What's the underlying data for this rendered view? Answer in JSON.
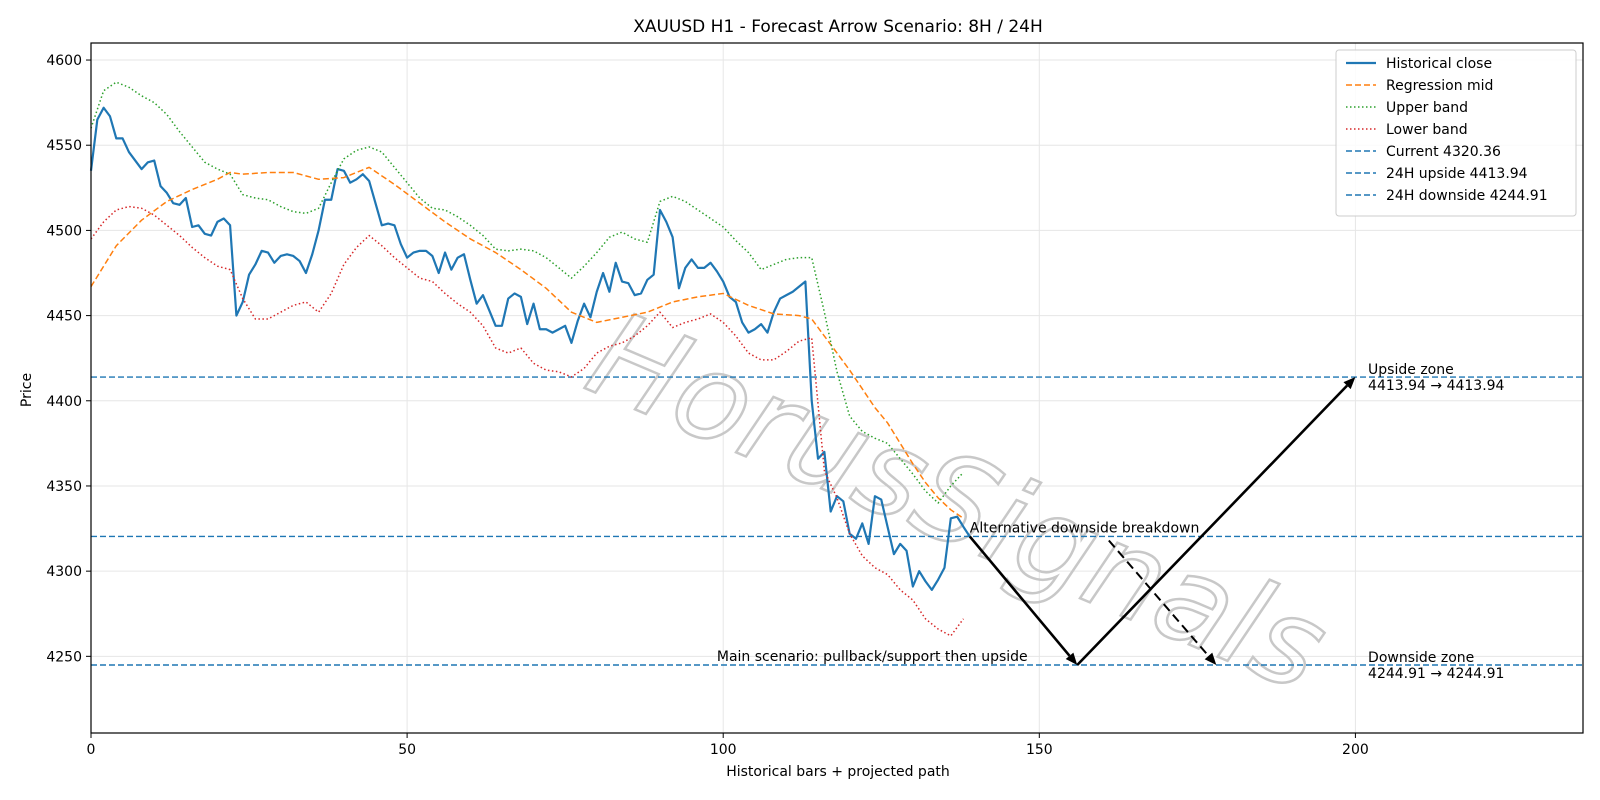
{
  "chart_data": {
    "type": "line",
    "title": "XAUUSD H1 - Forecast Arrow Scenario: 8H / 24H",
    "xlabel": "Historical bars + projected path",
    "ylabel": "Price",
    "xlim": [
      0,
      236
    ],
    "ylim": [
      4205,
      4610
    ],
    "xticks": [
      0,
      50,
      100,
      150,
      200
    ],
    "yticks": [
      4250,
      4300,
      4350,
      4400,
      4450,
      4500,
      4550,
      4600
    ],
    "grid": true,
    "legend_position": "top-right",
    "watermark": "HorusSignals",
    "colors": {
      "historical": "#1f77b4",
      "regression": "#ff7f0e",
      "upper": "#2ca02c",
      "lower": "#d62728",
      "levels": "#1f77b4",
      "arrows": "#000000"
    },
    "series": [
      {
        "name": "Historical close",
        "style": "solid",
        "color": "#1f77b4",
        "x": [
          0,
          1,
          2,
          3,
          4,
          5,
          6,
          7,
          8,
          9,
          10,
          11,
          12,
          13,
          14,
          15,
          16,
          17,
          18,
          19,
          20,
          21,
          22,
          23,
          24,
          25,
          26,
          27,
          28,
          29,
          30,
          31,
          32,
          33,
          34,
          35,
          36,
          37,
          38,
          39,
          40,
          41,
          42,
          43,
          44,
          45,
          46,
          47,
          48,
          49,
          50,
          51,
          52,
          53,
          54,
          55,
          56,
          57,
          58,
          59,
          60,
          61,
          62,
          63,
          64,
          65,
          66,
          67,
          68,
          69,
          70,
          71,
          72,
          73,
          74,
          75,
          76,
          77,
          78,
          79,
          80,
          81,
          82,
          83,
          84,
          85,
          86,
          87,
          88,
          89,
          90,
          91,
          92,
          93,
          94,
          95,
          96,
          97,
          98,
          99,
          100,
          101,
          102,
          103,
          104,
          105,
          106,
          107,
          108,
          109,
          110,
          111,
          112,
          113,
          114,
          115,
          116,
          117,
          118,
          119,
          120,
          121,
          122,
          123,
          124,
          125,
          126,
          127,
          128,
          129,
          130,
          131,
          132,
          133,
          134,
          135,
          136,
          137,
          138,
          139
        ],
        "values": [
          4535,
          4565,
          4572,
          4567,
          4554,
          4554,
          4546,
          4541,
          4536,
          4540,
          4541,
          4526,
          4522,
          4516,
          4515,
          4519,
          4502,
          4503,
          4498,
          4497,
          4505,
          4507,
          4503,
          4450,
          4458,
          4474,
          4480,
          4488,
          4487,
          4481,
          4485,
          4486,
          4485,
          4482,
          4475,
          4486,
          4500,
          4518,
          4518,
          4536,
          4535,
          4528,
          4530,
          4533,
          4529,
          4516,
          4503,
          4504,
          4503,
          4492,
          4484,
          4487,
          4488,
          4488,
          4485,
          4475,
          4487,
          4477,
          4484,
          4486,
          4471,
          4457,
          4462,
          4453,
          4444,
          4444,
          4460,
          4463,
          4461,
          4445,
          4457,
          4442,
          4442,
          4440,
          4442,
          4444,
          4434,
          4447,
          4457,
          4449,
          4464,
          4475,
          4464,
          4481,
          4470,
          4469,
          4462,
          4463,
          4471,
          4474,
          4512,
          4505,
          4496,
          4466,
          4478,
          4483,
          4478,
          4478,
          4481,
          4476,
          4470,
          4461,
          4458,
          4446,
          4440,
          4442,
          4445,
          4440,
          4452,
          4460,
          4462,
          4464,
          4467,
          4470,
          4400,
          4366,
          4370,
          4335,
          4344,
          4341,
          4322,
          4319,
          4328,
          4316,
          4344,
          4342,
          4326,
          4310,
          4316,
          4312,
          4291,
          4300,
          4294,
          4289,
          4295,
          4302,
          4331,
          4332,
          4326,
          4320.36
        ]
      },
      {
        "name": "Regression mid",
        "style": "dashed",
        "color": "#ff7f0e",
        "x": [
          0,
          4,
          8,
          12,
          16,
          20,
          22,
          24,
          28,
          32,
          36,
          40,
          44,
          48,
          52,
          56,
          60,
          64,
          68,
          72,
          76,
          80,
          84,
          88,
          92,
          96,
          100,
          104,
          108,
          112,
          114,
          116,
          118,
          120,
          122,
          124,
          126,
          128,
          130,
          132,
          134,
          136,
          138
        ],
        "values": [
          4467,
          4491,
          4506,
          4517,
          4524,
          4530,
          4534,
          4533,
          4534,
          4534,
          4530,
          4531,
          4537,
          4527,
          4516,
          4505,
          4495,
          4487,
          4477,
          4466,
          4452,
          4446,
          4449,
          4452,
          4458,
          4461,
          4463,
          4456,
          4451,
          4450,
          4448,
          4438,
          4428,
          4418,
          4407,
          4396,
          4387,
          4375,
          4363,
          4352,
          4343,
          4336,
          4331
        ]
      },
      {
        "name": "Upper band",
        "style": "dotted",
        "color": "#2ca02c",
        "x": [
          0,
          2,
          4,
          6,
          8,
          10,
          12,
          14,
          16,
          18,
          20,
          22,
          24,
          26,
          28,
          30,
          32,
          34,
          36,
          38,
          40,
          42,
          44,
          46,
          48,
          50,
          52,
          54,
          56,
          58,
          60,
          62,
          64,
          66,
          68,
          70,
          72,
          74,
          76,
          78,
          80,
          82,
          84,
          86,
          88,
          90,
          92,
          94,
          96,
          98,
          100,
          102,
          104,
          106,
          108,
          110,
          112,
          114,
          116,
          118,
          120,
          122,
          124,
          126,
          128,
          130,
          132,
          134,
          136,
          138
        ],
        "values": [
          4560,
          4582,
          4587,
          4584,
          4579,
          4575,
          4568,
          4558,
          4549,
          4540,
          4536,
          4533,
          4521,
          4519,
          4518,
          4514,
          4511,
          4510,
          4513,
          4528,
          4542,
          4547,
          4549,
          4546,
          4537,
          4528,
          4519,
          4513,
          4512,
          4508,
          4503,
          4497,
          4489,
          4488,
          4489,
          4488,
          4484,
          4478,
          4472,
          4479,
          4487,
          4496,
          4499,
          4495,
          4493,
          4517,
          4520,
          4517,
          4512,
          4507,
          4502,
          4494,
          4487,
          4477,
          4480,
          4483,
          4484,
          4484,
          4452,
          4417,
          4391,
          4382,
          4378,
          4375,
          4366,
          4357,
          4347,
          4340,
          4350,
          4358
        ]
      },
      {
        "name": "Lower band",
        "style": "dotted",
        "color": "#d62728",
        "x": [
          0,
          2,
          4,
          6,
          8,
          10,
          12,
          14,
          16,
          18,
          20,
          22,
          24,
          26,
          28,
          30,
          32,
          34,
          36,
          38,
          40,
          42,
          44,
          46,
          48,
          50,
          52,
          54,
          56,
          58,
          60,
          62,
          64,
          66,
          68,
          70,
          72,
          74,
          76,
          78,
          80,
          82,
          84,
          86,
          88,
          90,
          92,
          94,
          96,
          98,
          100,
          102,
          104,
          106,
          108,
          110,
          112,
          114,
          116,
          118,
          120,
          122,
          124,
          126,
          128,
          130,
          132,
          134,
          136,
          138
        ],
        "values": [
          4495,
          4505,
          4512,
          4514,
          4513,
          4509,
          4503,
          4497,
          4490,
          4484,
          4479,
          4477,
          4460,
          4448,
          4448,
          4452,
          4456,
          4458,
          4452,
          4463,
          4480,
          4490,
          4497,
          4491,
          4484,
          4478,
          4472,
          4470,
          4463,
          4457,
          4452,
          4444,
          4431,
          4428,
          4431,
          4422,
          4418,
          4417,
          4414,
          4419,
          4428,
          4432,
          4434,
          4438,
          4444,
          4452,
          4443,
          4446,
          4448,
          4451,
          4446,
          4438,
          4428,
          4424,
          4424,
          4429,
          4435,
          4437,
          4359,
          4343,
          4322,
          4309,
          4302,
          4298,
          4289,
          4283,
          4272,
          4266,
          4262,
          4272
        ]
      }
    ],
    "levels": [
      {
        "name": "Current 4320.36",
        "value": 4320.36,
        "style": "dashed",
        "color": "#1f77b4"
      },
      {
        "name": "24H upside 4413.94",
        "value": 4413.94,
        "style": "dashed",
        "color": "#1f77b4"
      },
      {
        "name": "24H downside 4244.91",
        "value": 4244.91,
        "style": "dashed",
        "color": "#1f77b4"
      }
    ],
    "arrows": [
      {
        "from": [
          139,
          4320.36
        ],
        "to": [
          156,
          4244.91
        ],
        "style": "solid"
      },
      {
        "from": [
          156,
          4244.91
        ],
        "to": [
          200,
          4413.94
        ],
        "style": "solid"
      },
      {
        "from": [
          161,
          4318
        ],
        "to": [
          178,
          4244.91
        ],
        "style": "dashed"
      }
    ],
    "annotations": [
      {
        "key": "alt_label",
        "text": "Alternative downside breakdown",
        "x": 139,
        "y": 4320.36
      },
      {
        "key": "main_label",
        "text": "Main scenario: pullback/support then upside",
        "x": 99,
        "y": 4244.91
      },
      {
        "key": "upside_title",
        "text": "Upside zone",
        "x": 202,
        "y": 4413.94
      },
      {
        "key": "upside_range",
        "text": "4413.94 → 4413.94",
        "x": 202,
        "y": 4413.94
      },
      {
        "key": "downside_title",
        "text": "Downside zone",
        "x": 202,
        "y": 4244.91
      },
      {
        "key": "downside_range",
        "text": "4244.91 → 4244.91",
        "x": 202,
        "y": 4244.91
      }
    ]
  }
}
